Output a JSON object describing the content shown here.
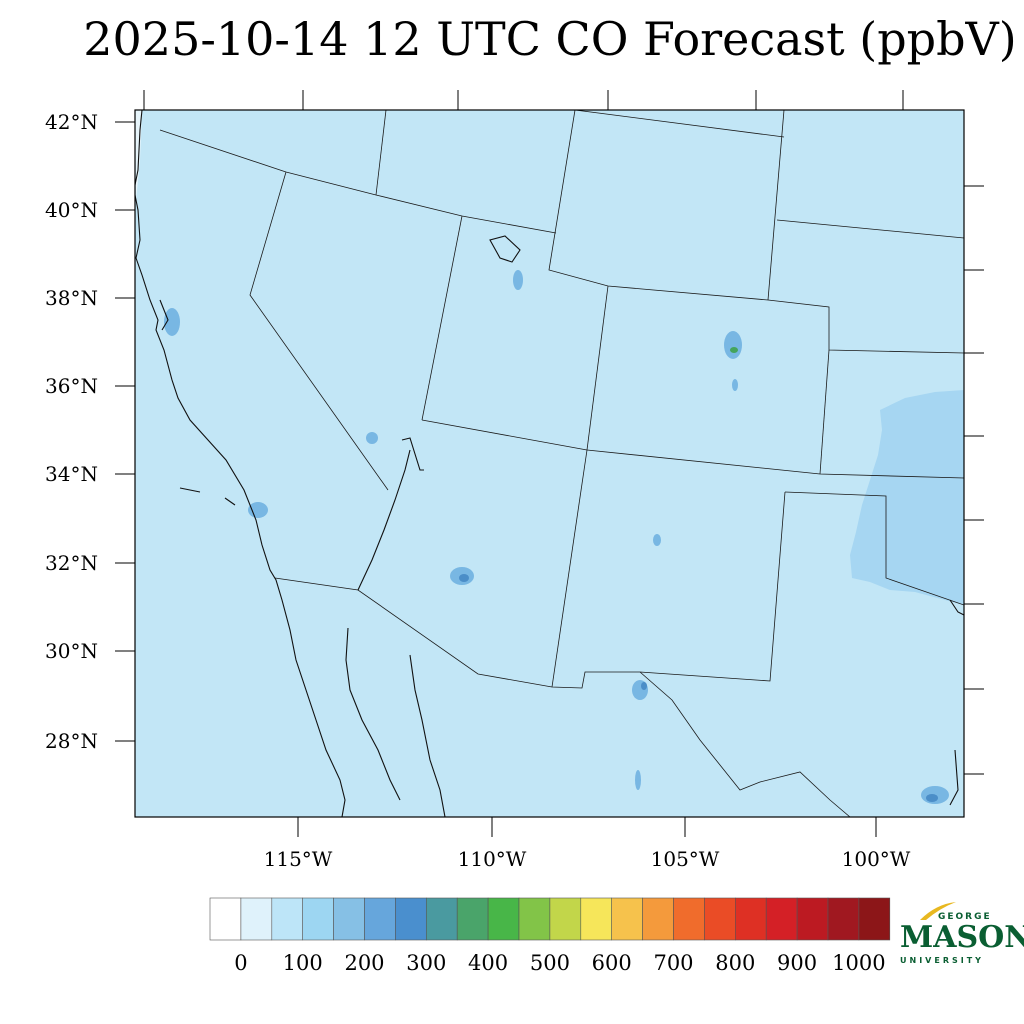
{
  "title": "2025-10-14 12 UTC CO Forecast (ppbV)",
  "map": {
    "latitude_labels": [
      "42°N",
      "40°N",
      "38°N",
      "36°N",
      "34°N",
      "32°N",
      "30°N",
      "28°N"
    ],
    "longitude_labels": [
      "115°W",
      "110°W",
      "105°W",
      "100°W"
    ],
    "background_color": "#c2e6f6",
    "enhanced_color": "#a6d6f2",
    "hotspot_colors": [
      "#5fa7dc",
      "#4b8ec8",
      "#44a45c"
    ]
  },
  "colorbar": {
    "labels": [
      "0",
      "100",
      "200",
      "300",
      "400",
      "500",
      "600",
      "700",
      "800",
      "900",
      "1000"
    ],
    "colors": [
      "#ffffff",
      "#dff2fb",
      "#bde5f8",
      "#9dd6f2",
      "#86c0e5",
      "#66a6dc",
      "#4a8fce",
      "#4a9aa0",
      "#4aa46a",
      "#48b648",
      "#82c448",
      "#c2d64a",
      "#f6e65a",
      "#f6c24c",
      "#f49a3c",
      "#f06c2c",
      "#ea4c26",
      "#de3024",
      "#d42026",
      "#bc1a22",
      "#a01820",
      "#8c1618"
    ]
  },
  "logo": {
    "top_text": "GEORGE",
    "main_text": "MASON",
    "bottom_text": "UNIVERSITY"
  }
}
